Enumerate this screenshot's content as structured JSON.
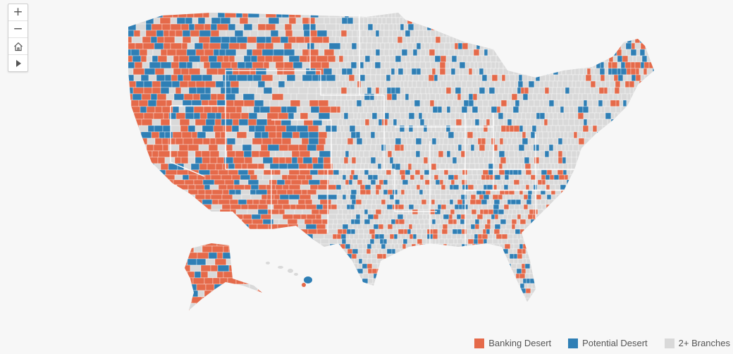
{
  "controls": {
    "zoom_in": "+",
    "zoom_out": "−",
    "home_icon": "home-icon",
    "play_icon": "play-icon"
  },
  "legend": [
    {
      "label": "Banking Desert",
      "color": "#e56a4a"
    },
    {
      "label": "Potential Desert",
      "color": "#2f7fb5"
    },
    {
      "label": "2+ Branches",
      "color": "#d9d9d9"
    }
  ],
  "colors": {
    "banking_desert": "#e56a4a",
    "potential_desert": "#2f7fb5",
    "two_plus_branches": "#d9d9d9",
    "background": "#f7f7f7",
    "border": "#ffffff"
  }
}
